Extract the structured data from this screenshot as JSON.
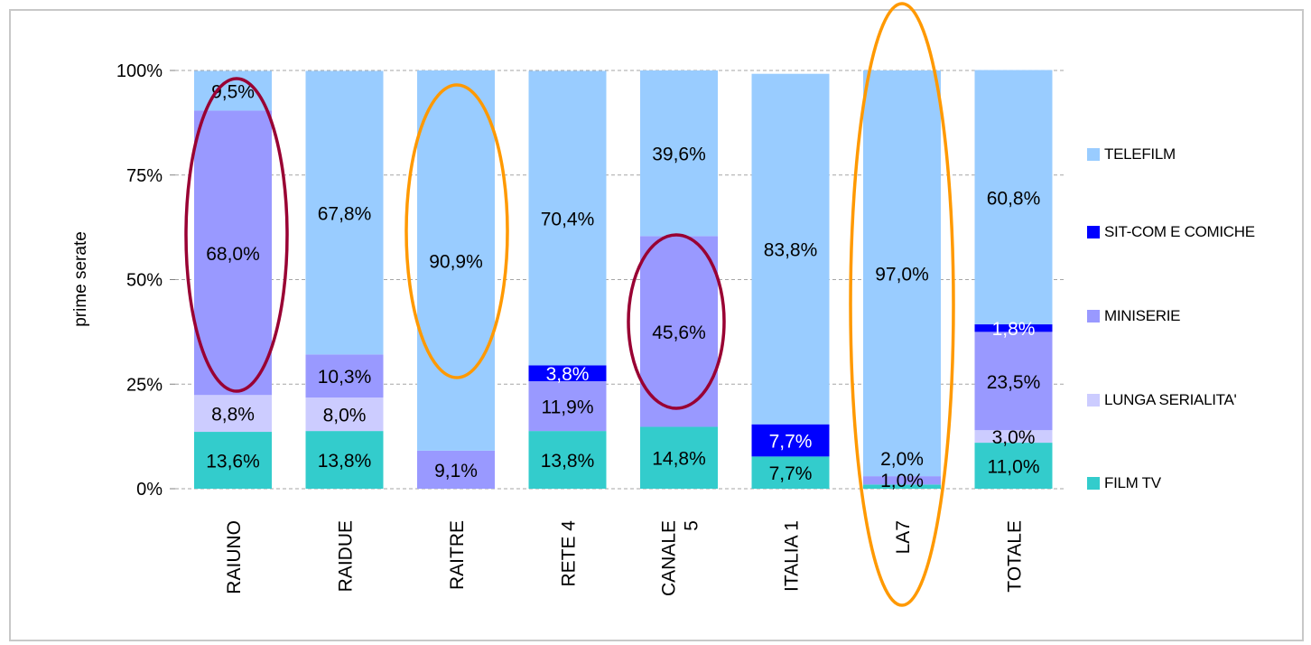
{
  "chart_data": {
    "type": "bar",
    "stacked": true,
    "percent": true,
    "ylabel": "prime serate",
    "xlabel": "",
    "ylim": [
      0,
      100
    ],
    "yticks": [
      "0%",
      "25%",
      "50%",
      "75%",
      "100%"
    ],
    "grid": "horizontal dashed",
    "legend_position": "right",
    "categories": [
      "RAIUNO",
      "RAIDUE",
      "RAITRE",
      "RETE 4",
      "CANALE 5",
      "ITALIA 1",
      "LA7",
      "TOTALE"
    ],
    "series": [
      {
        "name": "FILM TV",
        "color": "#33CCCC",
        "values": [
          13.6,
          13.8,
          0,
          13.8,
          14.8,
          7.7,
          1.0,
          11.0
        ],
        "labels": [
          "13,6%",
          "13,8%",
          "",
          "13,8%",
          "14,8%",
          "7,7%",
          "1,0%",
          "11,0%"
        ]
      },
      {
        "name": "LUNGA SERIALITA'",
        "color": "#CCCCFF",
        "values": [
          8.8,
          8.0,
          0,
          0,
          0,
          0,
          0,
          3.0
        ],
        "labels": [
          "8,8%",
          "8,0%",
          "",
          "",
          "",
          "",
          "",
          "3,0%"
        ]
      },
      {
        "name": "MINISERIE",
        "color": "#9999FF",
        "values": [
          68.0,
          10.3,
          9.1,
          11.9,
          45.6,
          0,
          2.0,
          23.5
        ],
        "labels": [
          "68,0%",
          "10,3%",
          "9,1%",
          "11,9%",
          "45,6%",
          "",
          "2,0%",
          "23,5%"
        ]
      },
      {
        "name": "SIT-COM E COMICHE",
        "color": "#0000FF",
        "values": [
          0,
          0,
          0,
          3.8,
          0,
          7.7,
          0,
          1.8
        ],
        "labels": [
          "",
          "",
          "",
          "3,8%",
          "",
          "7,7%",
          "",
          "1,8%"
        ]
      },
      {
        "name": "TELEFILM",
        "color": "#99CCFF",
        "values": [
          9.5,
          67.8,
          90.9,
          70.4,
          39.6,
          83.8,
          97.0,
          60.8
        ],
        "labels": [
          "9,5%",
          "67,8%",
          "90,9%",
          "70,4%",
          "39,6%",
          "83,8%",
          "97,0%",
          "60,8%"
        ]
      }
    ],
    "legend_order": [
      "TELEFILM",
      "SIT-COM E COMICHE",
      "MINISERIE",
      "LUNGA SERIALITA'",
      "FILM TV"
    ],
    "highlight_ellipses": [
      {
        "category": "RAIUNO",
        "color": "#990033"
      },
      {
        "category": "RAITRE",
        "color": "#FF9900"
      },
      {
        "category": "CANALE 5",
        "color": "#990033"
      },
      {
        "category": "LA7",
        "color": "#FF9900"
      }
    ]
  }
}
